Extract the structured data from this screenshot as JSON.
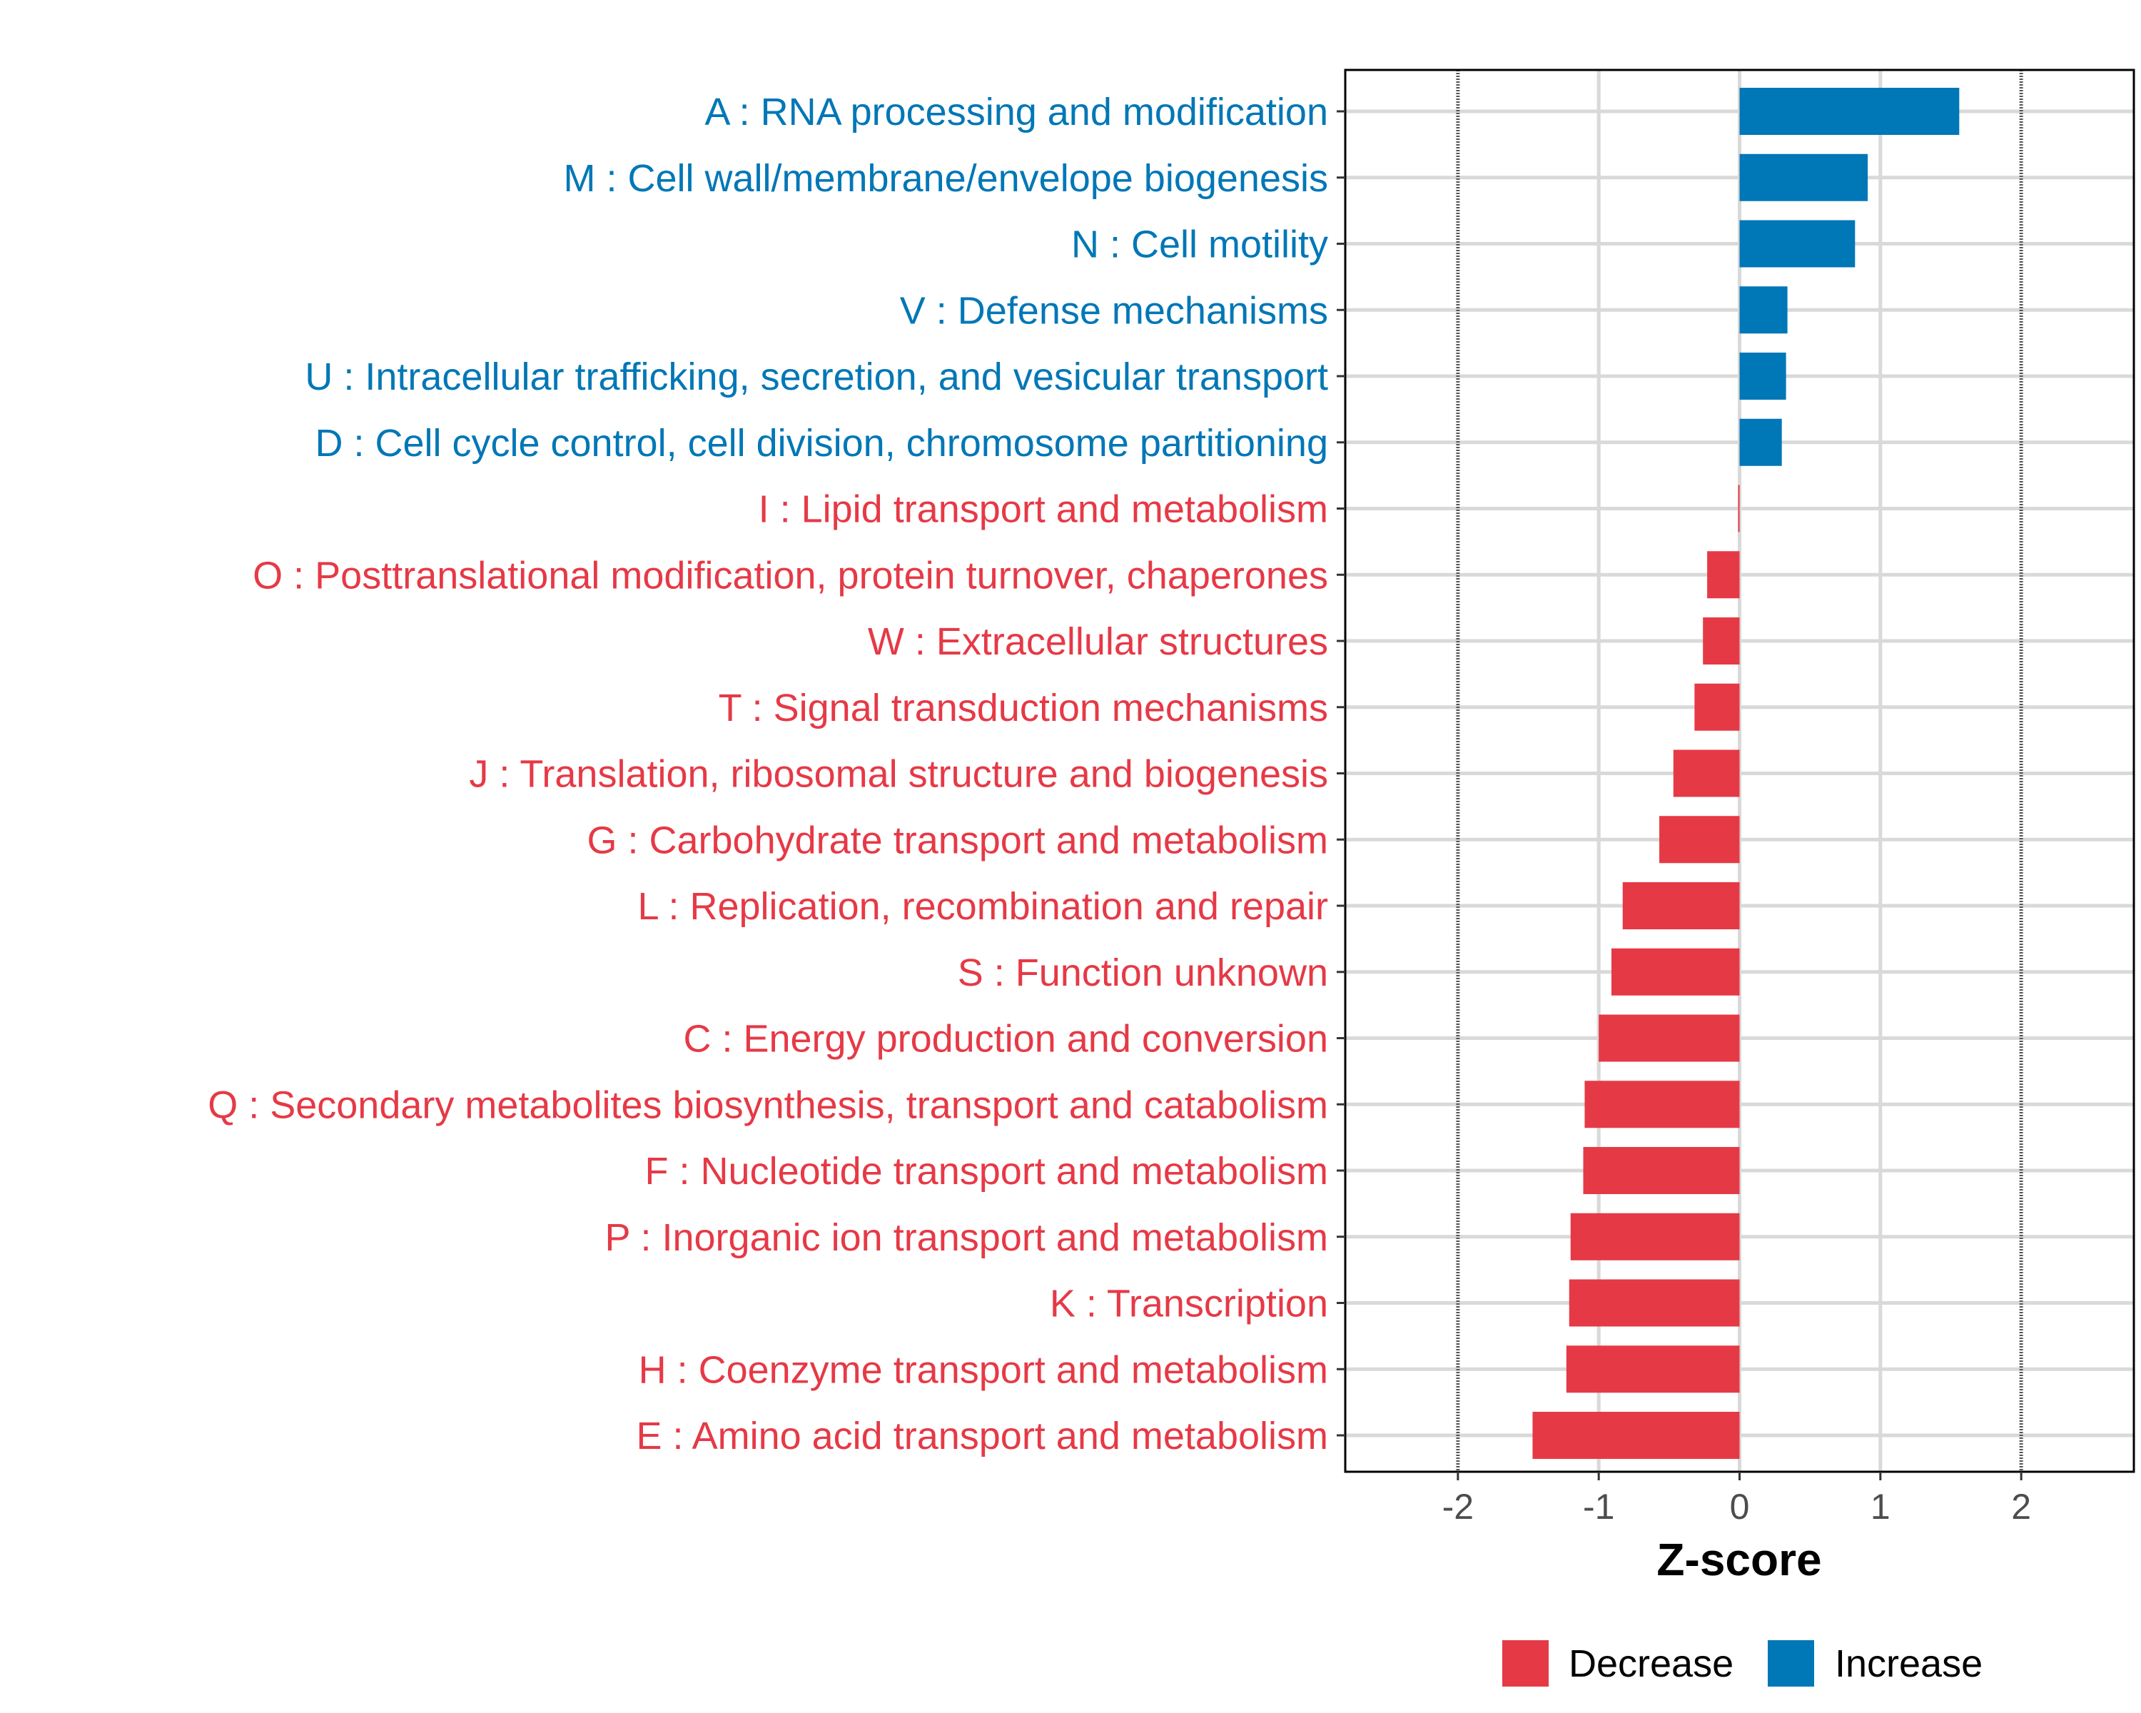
{
  "chart_data": {
    "type": "bar",
    "orientation": "horizontal",
    "xlabel": "Z-score",
    "xlim": [
      -2.8,
      2.8
    ],
    "xticks": [
      -2,
      -1,
      0,
      1,
      2
    ],
    "xtick_labels": [
      "-2",
      "-1",
      "0",
      "1",
      "2"
    ],
    "reference_lines": [
      -2,
      2
    ],
    "grid": true,
    "legend_position": "bottom",
    "legend": [
      {
        "label": "Decrease",
        "color": "#E63946"
      },
      {
        "label": "Increase",
        "color": "#0077B6"
      }
    ],
    "categories": [
      "A : RNA processing and modification",
      "M : Cell wall/membrane/envelope biogenesis",
      "N : Cell motility",
      "V : Defense mechanisms",
      "U : Intracellular trafficking, secretion, and vesicular transport",
      "D : Cell cycle control, cell division, chromosome partitioning",
      "I : Lipid transport and metabolism",
      "O : Posttranslational modification, protein turnover, chaperones",
      "W : Extracellular structures",
      "T : Signal transduction mechanisms",
      "J : Translation, ribosomal structure and biogenesis",
      "G : Carbohydrate transport and metabolism",
      "L : Replication, recombination and repair",
      "S : Function unknown",
      "C : Energy production and conversion",
      "Q : Secondary metabolites biosynthesis, transport and catabolism",
      "F : Nucleotide transport and metabolism",
      "P : Inorganic ion transport and metabolism",
      "K : Transcription",
      "H : Coenzyme transport and metabolism",
      "E : Amino acid transport and metabolism"
    ],
    "values": [
      1.56,
      0.91,
      0.82,
      0.34,
      0.33,
      0.3,
      -0.01,
      -0.23,
      -0.26,
      -0.32,
      -0.47,
      -0.57,
      -0.83,
      -0.91,
      -1.0,
      -1.1,
      -1.11,
      -1.2,
      -1.21,
      -1.23,
      -1.47
    ]
  }
}
